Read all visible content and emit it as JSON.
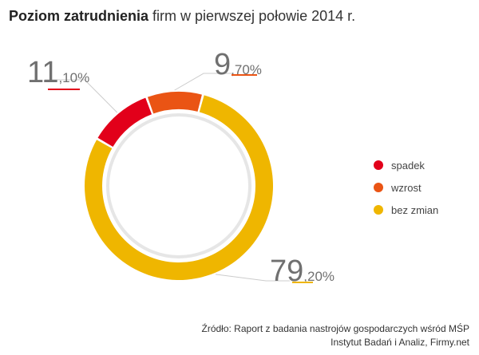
{
  "title": {
    "bold": "Poziom zatrudnienia",
    "rest": " firm w pierwszej połowie 2014 r."
  },
  "chart_data": {
    "type": "pie",
    "variant": "donut",
    "title": "Poziom zatrudnienia firm w pierwszej połowie 2014 r.",
    "categories": [
      "spadek",
      "wzrost",
      "bez zmian"
    ],
    "values": [
      11.1,
      9.7,
      79.2
    ],
    "value_labels": [
      {
        "int": "11",
        "dec": ",10%"
      },
      {
        "int": "9",
        "dec": ",70%"
      },
      {
        "int": "79",
        "dec": ",20%"
      }
    ],
    "colors": [
      "#e2001a",
      "#ea5414",
      "#efb600"
    ],
    "legend": {
      "position": "right"
    }
  },
  "legend": [
    {
      "label": "spadek",
      "color": "#e2001a"
    },
    {
      "label": "wzrost",
      "color": "#ea5414"
    },
    {
      "label": "bez zmian",
      "color": "#efb600"
    }
  ],
  "source": {
    "line1": "Źródło: Raport z badania nastrojów gospodarczych wśród MŚP",
    "line2": "Instytut Badań i Analiz, Firmy.net"
  }
}
